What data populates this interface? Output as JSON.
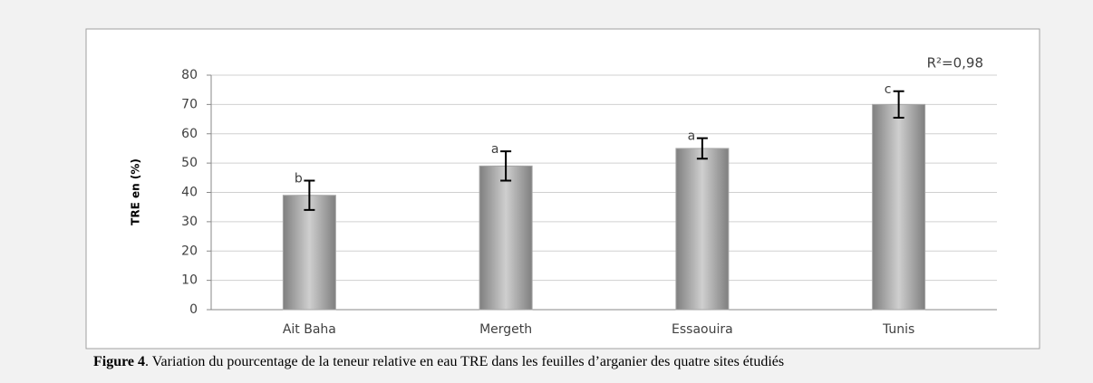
{
  "chart_data": {
    "type": "bar",
    "ylabel": "TRE en (%)",
    "categories": [
      "Ait Baha",
      "Mergeth",
      "Essaouira",
      "Tunis"
    ],
    "values": [
      39,
      49,
      55,
      70
    ],
    "errors": [
      5,
      5,
      3.5,
      4.5
    ],
    "letters": [
      "b",
      "a",
      "a",
      "c"
    ],
    "annotation": "R²=0,98",
    "color": "#a6a6a6",
    "ylim": [
      0,
      80
    ],
    "yticks": [
      0,
      10,
      20,
      30,
      40,
      50,
      60,
      70,
      80
    ],
    "grid": true
  },
  "caption": {
    "label": "Figure 4",
    "text": ". Variation du pourcentage de  la teneur relative en eau TRE dans les feuilles d’arganier des quatre sites étudiés"
  }
}
